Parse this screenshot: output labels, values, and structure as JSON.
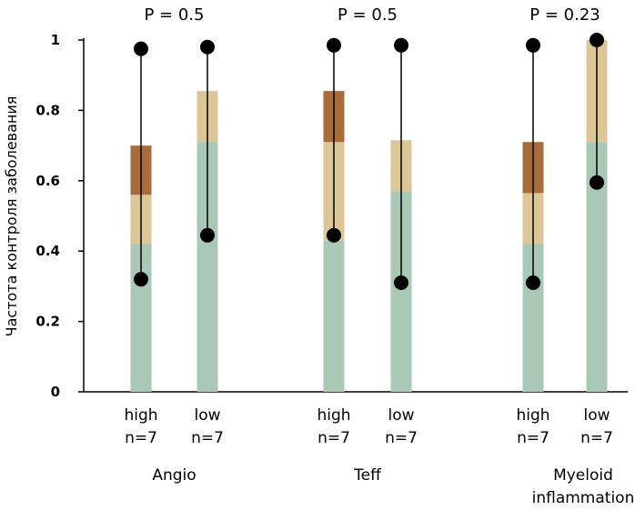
{
  "chart_data": {
    "type": "bar",
    "ylabel": "Частота контроля заболевания",
    "ylim": [
      0,
      1
    ],
    "yticks": [
      "0",
      "0.2",
      "0.4",
      "0.6",
      "0.8",
      "1"
    ],
    "grid": false,
    "colors": {
      "base": "#a9c8b5",
      "mid": "#dcc596",
      "top": "#a86c3a",
      "marker": "#000000",
      "axis": "#000000"
    },
    "groups": [
      {
        "label": "Angio",
        "pvalue": "P = 0.5",
        "bars": [
          {
            "label": "high",
            "n": "n=7",
            "segments": [
              0.42,
              0.14,
              0.14
            ],
            "whisker": [
              0.32,
              0.975
            ]
          },
          {
            "label": "low",
            "n": "n=7",
            "segments": [
              0.71,
              0.145,
              0
            ],
            "whisker": [
              0.445,
              0.98
            ]
          }
        ]
      },
      {
        "label": "Teff",
        "pvalue": "P = 0.5",
        "bars": [
          {
            "label": "high",
            "n": "n=7",
            "segments": [
              0.43,
              0.28,
              0.145
            ],
            "whisker": [
              0.445,
              0.985
            ]
          },
          {
            "label": "low",
            "n": "n=7",
            "segments": [
              0.57,
              0.145,
              0
            ],
            "whisker": [
              0.31,
              0.985
            ]
          }
        ]
      },
      {
        "label": "Myeloid inflammation",
        "label_lines": [
          "Myeloid",
          "inflammation"
        ],
        "pvalue": "P = 0.23",
        "bars": [
          {
            "label": "high",
            "n": "n=7",
            "segments": [
              0.42,
              0.145,
              0.145
            ],
            "whisker": [
              0.31,
              0.985
            ]
          },
          {
            "label": "low",
            "n": "n=7",
            "segments": [
              0.71,
              0.29,
              0
            ],
            "whisker": [
              0.595,
              1.0
            ]
          }
        ]
      }
    ]
  }
}
